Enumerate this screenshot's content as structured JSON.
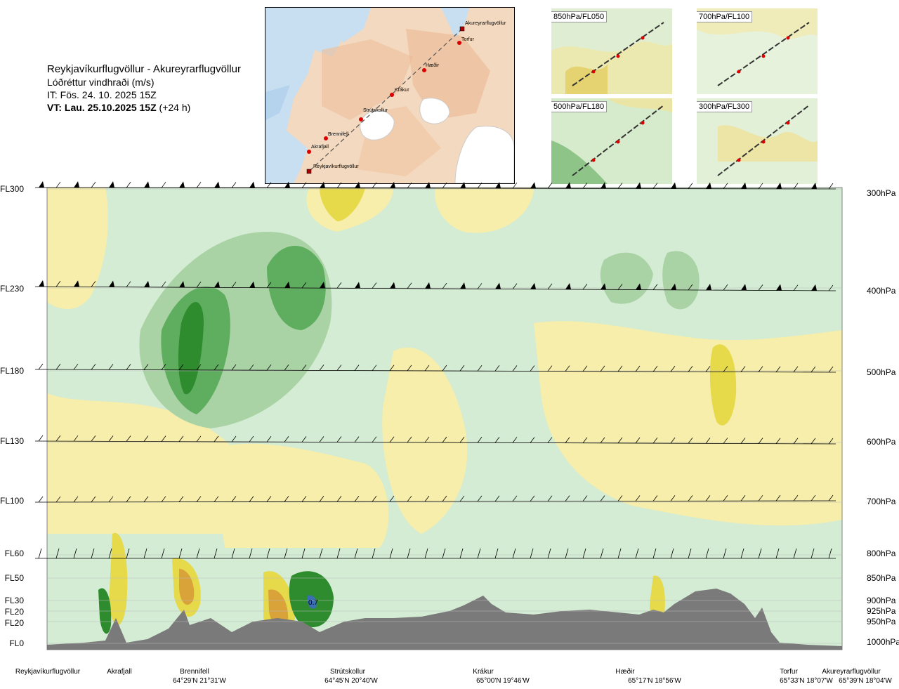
{
  "title": {
    "route": "Reykjavíkurflugvöllur - Akureyrarflugvöllur",
    "quantity": "Lóðréttur vindhraði (m/s)",
    "it": "IT: Fös. 24. 10. 2025 15Z",
    "vt_bold": "VT: Lau. 25.10.2025 15Z",
    "vt_rest": " (+24 h)"
  },
  "map": {
    "points": [
      {
        "name": "Akureyrarflugvöllur"
      },
      {
        "name": "Torfur"
      },
      {
        "name": "Hæðir"
      },
      {
        "name": "Krákur"
      },
      {
        "name": "Strútskollur"
      },
      {
        "name": "Brennifell"
      },
      {
        "name": "Akrafjall"
      },
      {
        "name": "Reykjavíkurflugvöllur"
      }
    ]
  },
  "mini_maps": [
    {
      "label": "850hPa/FL050"
    },
    {
      "label": "700hPa/FL100"
    },
    {
      "label": "500hPa/FL180"
    },
    {
      "label": "300hPa/FL300"
    }
  ],
  "levels": [
    {
      "fl": "FL300",
      "hpa": "300hPa"
    },
    {
      "fl": "FL230",
      "hpa": "400hPa"
    },
    {
      "fl": "FL180",
      "hpa": "500hPa"
    },
    {
      "fl": "FL130",
      "hpa": "600hPa"
    },
    {
      "fl": "FL100",
      "hpa": "700hPa"
    },
    {
      "fl": "FL60",
      "hpa": "800hPa"
    },
    {
      "fl": "FL50",
      "hpa": "850hPa"
    },
    {
      "fl": "FL30",
      "hpa": "900hPa"
    },
    {
      "fl": "FL20",
      "hpa": "925hPa"
    },
    {
      "fl": "FL20",
      "hpa": "950hPa"
    },
    {
      "fl": "FL0",
      "hpa": "1000hPa"
    }
  ],
  "locations": [
    {
      "name": "Reykjavíkurflugvöllur",
      "coord": ""
    },
    {
      "name": "Akrafjall",
      "coord": ""
    },
    {
      "name": "Brennifell",
      "coord": "64°29'N 21°31'W"
    },
    {
      "name": "Strútskollur",
      "coord": "64°45'N 20°40'W"
    },
    {
      "name": "Krákur",
      "coord": "65°00'N 19°46'W"
    },
    {
      "name": "Hæðir",
      "coord": "65°17'N 18°56'W"
    },
    {
      "name": "Torfur",
      "coord": "65°33'N 18°07'W"
    },
    {
      "name": "Akureyrarflugvöllur",
      "coord": "65°39'N 18°04'W"
    }
  ],
  "annotation": {
    "max_value": "0.7"
  },
  "chart_data": {
    "type": "heatmap",
    "title": "Lóðréttur vindhraði (m/s)",
    "x_categories": [
      "Reykjavíkurflugvöllur",
      "Akrafjall",
      "Brennifell",
      "Strútskollur",
      "Krákur",
      "Hæðir",
      "Torfur",
      "Akureyrarflugvöllur"
    ],
    "y_levels_hpa": [
      300,
      400,
      500,
      600,
      700,
      800,
      850,
      900,
      925,
      950,
      1000
    ],
    "y_levels_fl": [
      "FL300",
      "FL230",
      "FL180",
      "FL130",
      "FL100",
      "FL60",
      "FL50",
      "FL30",
      "FL20",
      "FL20",
      "FL0"
    ],
    "annotations": [
      {
        "text": "0.7",
        "location": "Strútskollur",
        "level_hpa": 900
      }
    ],
    "colors": {
      "strong_up": "#2e8b2e",
      "up": "#5fae5f",
      "weak_up": "#a9d3a5",
      "near_zero_up": "#d3ecd3",
      "neutral": "#fafce4",
      "weak_down": "#f6eeaa",
      "down": "#e6d94a",
      "strong_down": "#d9a33a",
      "terrain": "#7a7a7a"
    }
  }
}
